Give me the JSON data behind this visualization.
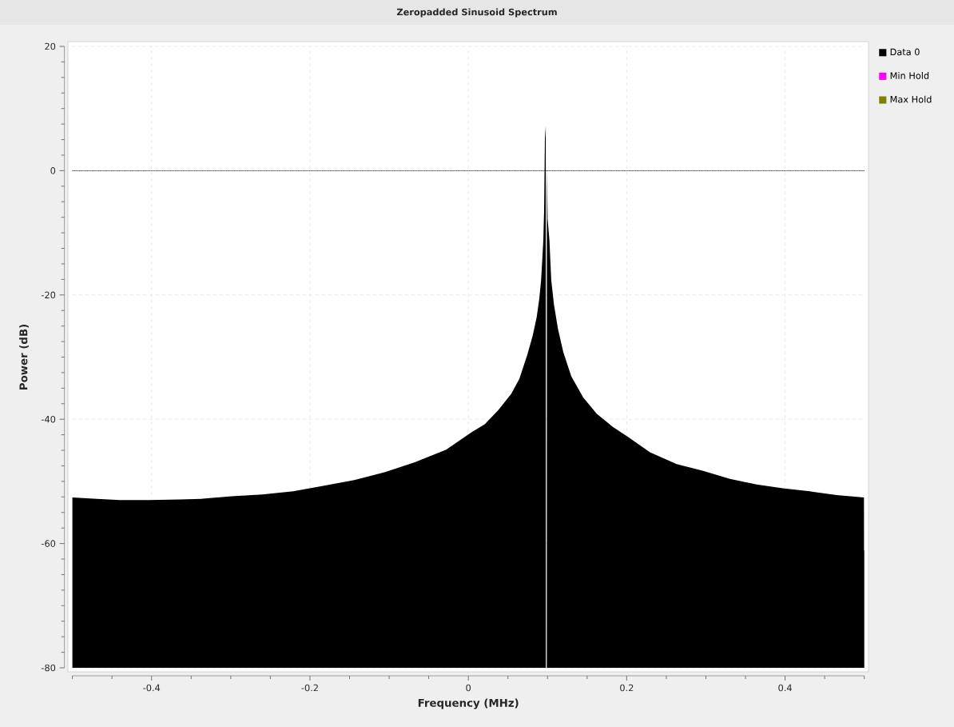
{
  "chart_data": {
    "type": "area",
    "title": "Zeropadded Sinusoid Spectrum",
    "xlabel": "Frequency (MHz)",
    "ylabel": "Power (dB)",
    "series": [
      {
        "name": "Data 0",
        "color": "#000000",
        "x": [
          -0.5,
          -0.5,
          -0.469,
          -0.44,
          -0.403,
          -0.364,
          -0.337,
          -0.299,
          -0.26,
          -0.221,
          -0.182,
          -0.144,
          -0.105,
          -0.067,
          -0.028,
          0.004,
          0.0207,
          0.0374,
          0.0543,
          0.0644,
          0.0745,
          0.0812,
          0.0863,
          0.0896,
          0.0919,
          0.0936,
          0.0947,
          0.0957,
          0.0967,
          0.0978,
          0.0979,
          0.0991,
          0.0992,
          0.1001,
          0.1024,
          0.1047,
          0.1081,
          0.1131,
          0.1199,
          0.13,
          0.1451,
          0.162,
          0.1821,
          0.2023,
          0.2294,
          0.263,
          0.2966,
          0.3302,
          0.364,
          0.397,
          0.431,
          0.465,
          0.4996,
          0.4997,
          0.5,
          0.5
        ],
        "values": [
          -80,
          -52.6,
          -52.8,
          -53.0,
          -53.0,
          -52.9,
          -52.8,
          -52.4,
          -52.1,
          -51.6,
          -50.7,
          -49.8,
          -48.5,
          -46.9,
          -44.9,
          -42.1,
          -40.8,
          -38.6,
          -35.9,
          -33.5,
          -29.6,
          -26.6,
          -23.6,
          -20.6,
          -17.6,
          -13.8,
          -11.2,
          -6.4,
          5.1,
          7.2,
          -80,
          -80,
          0.6,
          -7.7,
          -11.2,
          -17.6,
          -21.5,
          -25.4,
          -29.2,
          -33.1,
          -36.5,
          -39.1,
          -41.2,
          -42.9,
          -45.3,
          -47.2,
          -48.3,
          -49.6,
          -50.5,
          -51.1,
          -51.6,
          -52.2,
          -52.6,
          -61.1,
          -61.1,
          -80
        ]
      },
      {
        "name": "Min Hold",
        "color": "#ff00ff"
      },
      {
        "name": "Max Hold",
        "color": "#808000"
      }
    ],
    "xlim": [
      -0.5,
      0.5
    ],
    "ylim": [
      -80,
      20
    ],
    "xticks": [
      {
        "value": -0.5,
        "label": null
      },
      {
        "value": -0.45,
        "label": null
      },
      -0.4,
      {
        "value": -0.35,
        "label": null
      },
      {
        "value": -0.3,
        "label": null
      },
      {
        "value": -0.25,
        "label": null
      },
      -0.2,
      {
        "value": -0.15,
        "label": null
      },
      {
        "value": -0.1,
        "label": null
      },
      {
        "value": -0.05,
        "label": null
      },
      0,
      {
        "value": 0.05,
        "label": null
      },
      {
        "value": 0.1,
        "label": null
      },
      {
        "value": 0.15,
        "label": null
      },
      0.2,
      {
        "value": 0.25,
        "label": null
      },
      {
        "value": 0.3,
        "label": null
      },
      {
        "value": 0.35,
        "label": null
      },
      0.4,
      {
        "value": 0.45,
        "label": null
      },
      {
        "value": 0.5,
        "label": null
      }
    ],
    "yticks": [
      -80,
      {
        "value": -77.5,
        "label": null
      },
      {
        "value": -75,
        "label": null
      },
      {
        "value": -72.5,
        "label": null
      },
      {
        "value": -70,
        "label": null
      },
      {
        "value": -67.5,
        "label": null
      },
      {
        "value": -65,
        "label": null
      },
      {
        "value": -62.5,
        "label": null
      },
      -60,
      {
        "value": -57.5,
        "label": null
      },
      {
        "value": -55,
        "label": null
      },
      {
        "value": -52.5,
        "label": null
      },
      {
        "value": -50,
        "label": null
      },
      {
        "value": -47.5,
        "label": null
      },
      {
        "value": -45,
        "label": null
      },
      {
        "value": -42.5,
        "label": null
      },
      -40,
      {
        "value": -37.5,
        "label": null
      },
      {
        "value": -35,
        "label": null
      },
      {
        "value": -32.5,
        "label": null
      },
      {
        "value": -30,
        "label": null
      },
      {
        "value": -27.5,
        "label": null
      },
      {
        "value": -25,
        "label": null
      },
      {
        "value": -22.5,
        "label": null
      },
      -20,
      {
        "value": -17.5,
        "label": null
      },
      {
        "value": -15,
        "label": null
      },
      {
        "value": -12.5,
        "label": null
      },
      {
        "value": -10,
        "label": null
      },
      {
        "value": -7.5,
        "label": null
      },
      {
        "value": -5,
        "label": null
      },
      {
        "value": -2.5,
        "label": null
      },
      0,
      {
        "value": 2.5,
        "label": null
      },
      {
        "value": 5,
        "label": null
      },
      {
        "value": 7.5,
        "label": null
      },
      {
        "value": 10,
        "label": null
      },
      {
        "value": 12.5,
        "label": null
      },
      {
        "value": 15,
        "label": null
      },
      {
        "value": 17.5,
        "label": null
      },
      20
    ],
    "grid": true,
    "legend": "top right",
    "ref_lines": [
      {
        "axis": "y",
        "value": 0,
        "color": "#000000",
        "line_style": "dotted"
      }
    ]
  }
}
